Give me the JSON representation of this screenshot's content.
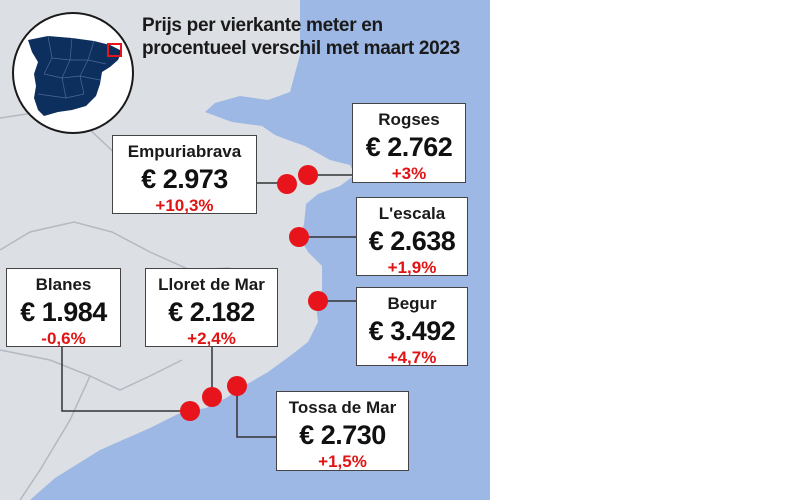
{
  "title": {
    "line1": "Prijs per vierkante meter en",
    "line2": "procentueel verschil met maart 2023"
  },
  "colors": {
    "sea": "#9db8e4",
    "land": "#dcdfe4",
    "marker": "#e8141c",
    "positive": "#e11414",
    "inset_land": "#0d2f5e",
    "inset_highlight": "#e8141c"
  },
  "locations": [
    {
      "id": "empuriabrava",
      "name": "Empuriabrava",
      "price": "€ 2.973",
      "change": "+10,3%"
    },
    {
      "id": "rogses",
      "name": "Rogses",
      "price": "€ 2.762",
      "change": "+3%"
    },
    {
      "id": "lescala",
      "name": "L'escala",
      "price": "€ 2.638",
      "change": "+1,9%"
    },
    {
      "id": "begur",
      "name": "Begur",
      "price": "€ 3.492",
      "change": "+4,7%"
    },
    {
      "id": "blanes",
      "name": "Blanes",
      "price": "€ 1.984",
      "change": "-0,6%"
    },
    {
      "id": "lloret",
      "name": "Lloret de Mar",
      "price": "€ 2.182",
      "change": "+2,4%"
    },
    {
      "id": "tossa",
      "name": "Tossa de Mar",
      "price": "€ 2.730",
      "change": "+1,5%"
    }
  ]
}
